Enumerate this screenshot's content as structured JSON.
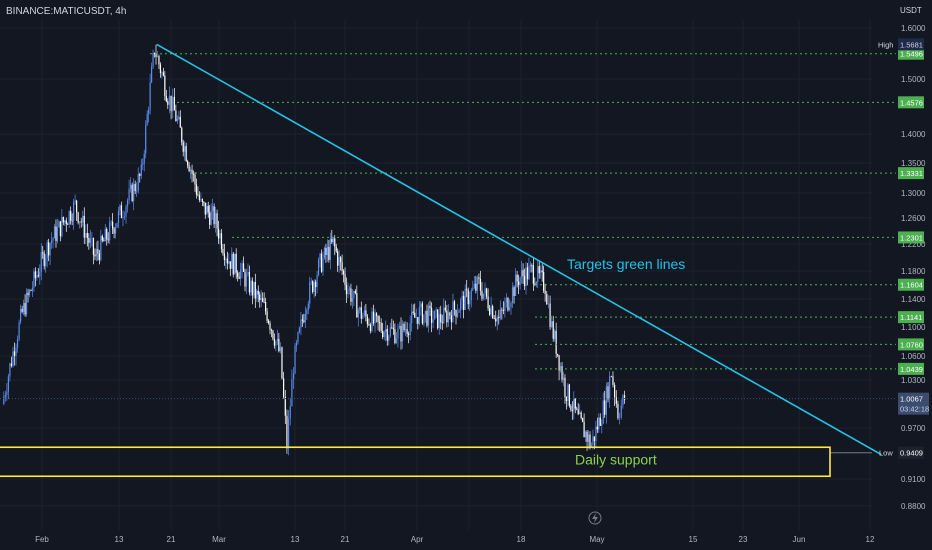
{
  "header": {
    "symbol": "BINANCE:MATICUSDT, 4h",
    "currency": "USDT"
  },
  "colors": {
    "background": "#131722",
    "grid": "#1e222d",
    "up_candle": "#5b8def",
    "down_candle": "#ffffff",
    "trendline": "#22c3e6",
    "target_line": "#4caf50",
    "support_box": "#ffeb3b",
    "current_price": "#5b9bd5"
  },
  "chart_data": {
    "type": "candlestick",
    "title": "",
    "xlabel": "",
    "ylabel": "",
    "x_ticks": [
      "Feb",
      "13",
      "21",
      "Mar",
      "13",
      "21",
      "Apr",
      "18",
      "May",
      "15",
      "23",
      "Jun",
      "12"
    ],
    "y_ticks": [
      "1.6000",
      "1.5000",
      "1.4000",
      "1.3500",
      "1.3000",
      "1.2600",
      "1.2200",
      "1.1800",
      "1.1400",
      "1.1000",
      "1.0600",
      "1.0300",
      "0.9700",
      "0.9100",
      "0.8800"
    ],
    "y_scale": "log",
    "ylim": [
      0.86,
      1.63
    ],
    "series_path": [
      [
        "Jan 26",
        1.0
      ],
      [
        "Jan 29",
        1.12
      ],
      [
        "Feb 2",
        1.22
      ],
      [
        "Feb 6",
        1.28
      ],
      [
        "Feb 9",
        1.2
      ],
      [
        "Feb 13",
        1.27
      ],
      [
        "Feb 16",
        1.33
      ],
      [
        "Feb 18",
        1.56
      ],
      [
        "Feb 20",
        1.47
      ],
      [
        "Feb 21",
        1.44
      ],
      [
        "Feb 23",
        1.36
      ],
      [
        "Feb 25",
        1.28
      ],
      [
        "Feb 27",
        1.26
      ],
      [
        "Mar 1",
        1.2
      ],
      [
        "Mar 3",
        1.18
      ],
      [
        "Mar 5",
        1.15
      ],
      [
        "Mar 7",
        1.12
      ],
      [
        "Mar 9",
        1.06
      ],
      [
        "Mar 10",
        0.95
      ],
      [
        "Mar 11",
        1.05
      ],
      [
        "Mar 13",
        1.14
      ],
      [
        "Mar 15",
        1.19
      ],
      [
        "Mar 17",
        1.22
      ],
      [
        "Mar 19",
        1.16
      ],
      [
        "Mar 21",
        1.12
      ],
      [
        "Mar 24",
        1.1
      ],
      [
        "Mar 27",
        1.09
      ],
      [
        "Mar 30",
        1.12
      ],
      [
        "Apr 2",
        1.11
      ],
      [
        "Apr 5",
        1.13
      ],
      [
        "Apr 8",
        1.16
      ],
      [
        "Apr 11",
        1.11
      ],
      [
        "Apr 14",
        1.17
      ],
      [
        "Apr 16",
        1.18
      ],
      [
        "Apr 18",
        1.16
      ],
      [
        "Apr 19",
        1.1
      ],
      [
        "Apr 21",
        1.02
      ],
      [
        "Apr 23",
        0.98
      ],
      [
        "Apr 25",
        0.95
      ],
      [
        "Apr 27",
        1.0
      ],
      [
        "Apr 28",
        1.04
      ],
      [
        "Apr 29",
        0.99
      ],
      [
        "Apr 30",
        1.0067
      ]
    ],
    "high": {
      "label": "High",
      "value": "1.5681"
    },
    "low": {
      "label": "Low",
      "value": "0.9409"
    },
    "current": {
      "value": "1.0067",
      "countdown": "03:42:18"
    },
    "target_levels": [
      "1.5496",
      "1.4576",
      "1.3331",
      "1.2301",
      "1.1604",
      "1.1141",
      "1.0760",
      "1.0439"
    ],
    "trendline": {
      "from": [
        "Feb 18",
        1.5681
      ],
      "to": [
        "Jun 6",
        0.9409
      ]
    },
    "support_zone": {
      "label": "Daily support",
      "bottom": 0.925,
      "top": 0.945
    },
    "annotation": "Targets green lines"
  }
}
